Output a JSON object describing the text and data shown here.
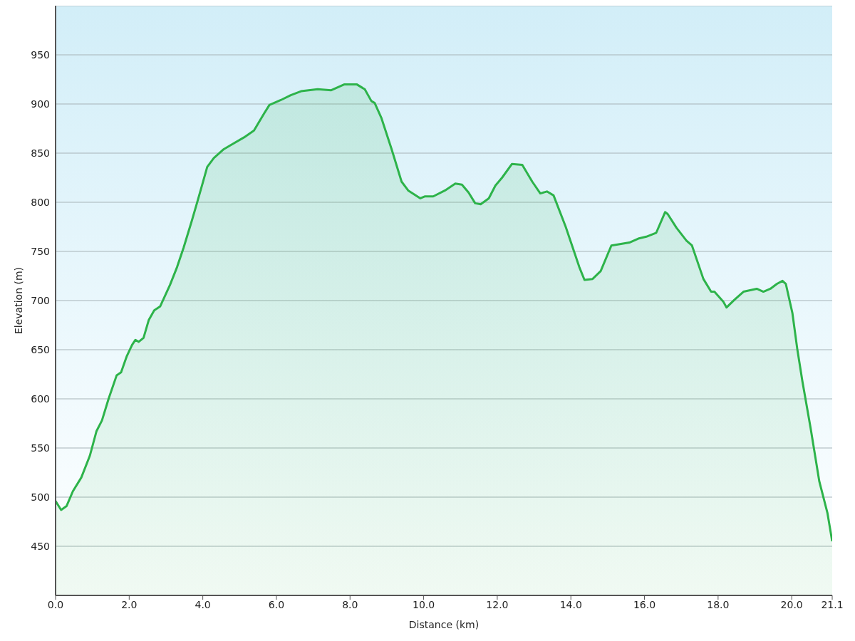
{
  "chart_data": {
    "type": "area",
    "xlabel": "Distance  (km)",
    "ylabel": "Elevation (m)",
    "xlim": [
      0,
      21.1
    ],
    "ylim": [
      400,
      1000
    ],
    "xticks": [
      {
        "value": 0,
        "label": "0.0"
      },
      {
        "value": 2,
        "label": "2.0"
      },
      {
        "value": 4,
        "label": "4.0"
      },
      {
        "value": 6,
        "label": "6.0"
      },
      {
        "value": 8,
        "label": "8.0"
      },
      {
        "value": 10,
        "label": "10.0"
      },
      {
        "value": 12,
        "label": "12.0"
      },
      {
        "value": 14,
        "label": "14.0"
      },
      {
        "value": 16,
        "label": "16.0"
      },
      {
        "value": 18,
        "label": "18.0"
      },
      {
        "value": 20,
        "label": "20.0"
      },
      {
        "value": 21.1,
        "label": "21.1"
      }
    ],
    "yticks": [
      450,
      500,
      550,
      600,
      650,
      700,
      750,
      800,
      850,
      900,
      950
    ],
    "grid": "y",
    "legend": false,
    "marker": "none",
    "line_style": "solid",
    "x": [
      0,
      0.15,
      0.3,
      0.47,
      0.7,
      0.93,
      1.11,
      1.26,
      1.44,
      1.66,
      1.78,
      1.93,
      2.08,
      2.17,
      2.26,
      2.39,
      2.53,
      2.68,
      2.84,
      3.11,
      3.3,
      3.48,
      3.7,
      3.84,
      3.97,
      4.12,
      4.3,
      4.57,
      4.75,
      5.12,
      5.39,
      5.66,
      5.81,
      6.12,
      6.39,
      6.67,
      7.12,
      7.49,
      7.85,
      8.18,
      8.4,
      8.58,
      8.67,
      8.85,
      9.13,
      9.4,
      9.58,
      9.91,
      10.04,
      10.26,
      10.58,
      10.86,
      11.04,
      11.22,
      11.4,
      11.55,
      11.77,
      11.95,
      12.13,
      12.4,
      12.68,
      12.95,
      13.17,
      13.35,
      13.53,
      13.86,
      14.23,
      14.37,
      14.59,
      14.81,
      15.1,
      15.59,
      15.83,
      16.05,
      16.32,
      16.56,
      16.63,
      16.87,
      17.14,
      17.29,
      17.6,
      17.81,
      17.9,
      18.14,
      18.23,
      18.45,
      18.69,
      19.05,
      19.23,
      19.42,
      19.6,
      19.75,
      19.84,
      20.02,
      20.15,
      20.29,
      20.51,
      20.75,
      20.97,
      21.1
    ],
    "series": [
      {
        "color": "#2db34a",
        "values": [
          496,
          487,
          491,
          506,
          520,
          542,
          567,
          578,
          600,
          624,
          627,
          643,
          655,
          660,
          658,
          662,
          680,
          690,
          694,
          716,
          734,
          754,
          781,
          799,
          816,
          836,
          845,
          854,
          858,
          866,
          873,
          890,
          899,
          904,
          909,
          913,
          915,
          914,
          920,
          920,
          915,
          903,
          901,
          886,
          854,
          821,
          812,
          804,
          806,
          806,
          812,
          819,
          818,
          810,
          799,
          798,
          804,
          817,
          825,
          839,
          838,
          821,
          809,
          811,
          807,
          775,
          734,
          721,
          722,
          730,
          756,
          759,
          763,
          765,
          769,
          790,
          788,
          774,
          761,
          756,
          722,
          709,
          709,
          699,
          693,
          701,
          709,
          712,
          709,
          712,
          717,
          720,
          717,
          687,
          651,
          618,
          571,
          516,
          484,
          455
        ]
      }
    ]
  }
}
